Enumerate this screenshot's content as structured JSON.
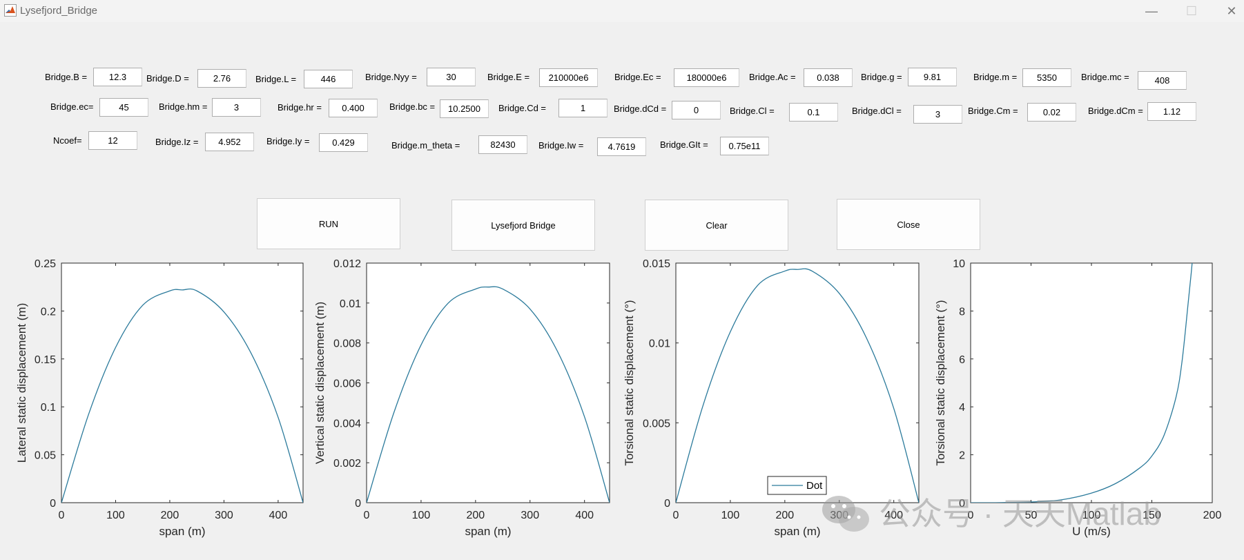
{
  "window": {
    "title": "Lysefjord_Bridge",
    "controls": [
      "—",
      "☐",
      "✕"
    ]
  },
  "params": [
    {
      "id": "B",
      "label": "Bridge.B =",
      "value": "12.3"
    },
    {
      "id": "D",
      "label": "Bridge.D =",
      "value": "2.76"
    },
    {
      "id": "L",
      "label": "Bridge.L =",
      "value": "446"
    },
    {
      "id": "Nyy",
      "label": "Bridge.Nyy =",
      "value": "30"
    },
    {
      "id": "E",
      "label": "Bridge.E =",
      "value": "210000e6"
    },
    {
      "id": "Ec",
      "label": "Bridge.Ec =",
      "value": "180000e6"
    },
    {
      "id": "Ac",
      "label": "Bridge.Ac =",
      "value": "0.038"
    },
    {
      "id": "g",
      "label": "Bridge.g =",
      "value": "9.81"
    },
    {
      "id": "m",
      "label": "Bridge.m =",
      "value": "5350"
    },
    {
      "id": "mc",
      "label": "Bridge.mc =",
      "value": "408"
    },
    {
      "id": "ec",
      "label": "Bridge.ec=",
      "value": "45"
    },
    {
      "id": "hm",
      "label": "Bridge.hm =",
      "value": "3"
    },
    {
      "id": "hr",
      "label": "Bridge.hr =",
      "value": "0.400"
    },
    {
      "id": "bc",
      "label": "Bridge.bc =",
      "value": "10.2500"
    },
    {
      "id": "Cd",
      "label": "Bridge.Cd =",
      "value": "1"
    },
    {
      "id": "dCd",
      "label": "Bridge.dCd =",
      "value": "0"
    },
    {
      "id": "Cl",
      "label": "Bridge.Cl =",
      "value": "0.1"
    },
    {
      "id": "dCl",
      "label": "Bridge.dCl =",
      "value": "3"
    },
    {
      "id": "Cm",
      "label": "Bridge.Cm =",
      "value": "0.02"
    },
    {
      "id": "dCm",
      "label": "Bridge.dCm =",
      "value": "1.12"
    },
    {
      "id": "Ncoef",
      "label": "Ncoef=",
      "value": "12"
    },
    {
      "id": "Iz",
      "label": "Bridge.Iz =",
      "value": "4.952"
    },
    {
      "id": "Iy",
      "label": "Bridge.Iy =",
      "value": "0.429"
    },
    {
      "id": "m_theta",
      "label": "Bridge.m_theta =",
      "value": "82430"
    },
    {
      "id": "Iw",
      "label": "Bridge.Iw =",
      "value": "4.7619"
    },
    {
      "id": "GIt",
      "label": "Bridge.GIt =",
      "value": "0.75e11"
    }
  ],
  "buttons": [
    {
      "id": "run",
      "label": "RUN"
    },
    {
      "id": "lysefjord",
      "label": "Lysefjord Bridge"
    },
    {
      "id": "clear",
      "label": "Clear"
    },
    {
      "id": "close",
      "label": "Close"
    }
  ],
  "line_color": "#2b7a9b",
  "chart_data": [
    {
      "type": "line",
      "xlabel": "span (m)",
      "ylabel": "Lateral static displacement (m)",
      "xlim": [
        0,
        446
      ],
      "ylim": [
        0,
        0.25
      ],
      "xticks": [
        0,
        100,
        200,
        300,
        400
      ],
      "yticks": [
        0,
        0.05,
        0.1,
        0.15,
        0.2,
        0.25
      ],
      "ytick_labels": [
        "0",
        "0.05",
        "0.1",
        "0.15",
        "0.2",
        "0.25"
      ],
      "series": [
        {
          "x": [
            0,
            50,
            100,
            150,
            200,
            223,
            250,
            300,
            350,
            400,
            446
          ],
          "y": [
            0,
            0.092,
            0.162,
            0.206,
            0.221,
            0.222,
            0.221,
            0.199,
            0.156,
            0.089,
            0
          ]
        }
      ]
    },
    {
      "type": "line",
      "xlabel": "span (m)",
      "ylabel": "Vertical static displacement (m)",
      "xlim": [
        0,
        446
      ],
      "ylim": [
        0,
        0.012
      ],
      "xticks": [
        0,
        100,
        200,
        300,
        400
      ],
      "yticks": [
        0,
        0.002,
        0.004,
        0.006,
        0.008,
        0.01,
        0.012
      ],
      "ytick_labels": [
        "0",
        "0.002",
        "0.004",
        "0.006",
        "0.008",
        "0.01",
        "0.012"
      ],
      "series": [
        {
          "x": [
            0,
            50,
            100,
            150,
            200,
            223,
            250,
            300,
            350,
            400,
            446
          ],
          "y": [
            0,
            0.0045,
            0.0079,
            0.01,
            0.0107,
            0.0108,
            0.0107,
            0.0097,
            0.0076,
            0.0043,
            0
          ]
        }
      ]
    },
    {
      "type": "line",
      "xlabel": "span (m)",
      "ylabel": "Torsional static displacement (°)",
      "xlim": [
        0,
        446
      ],
      "ylim": [
        0,
        0.015
      ],
      "xticks": [
        0,
        100,
        200,
        300,
        400
      ],
      "yticks": [
        0,
        0.005,
        0.01,
        0.015
      ],
      "ytick_labels": [
        "0",
        "0.005",
        "0.01",
        "0.015"
      ],
      "legend": {
        "entries": [
          "Dot"
        ],
        "location": "bottom"
      },
      "series": [
        {
          "name": "Dot",
          "x": [
            0,
            50,
            100,
            150,
            200,
            223,
            250,
            300,
            350,
            400,
            446
          ],
          "y": [
            0,
            0.0061,
            0.0107,
            0.0136,
            0.0145,
            0.0146,
            0.0145,
            0.0131,
            0.0103,
            0.0059,
            0
          ]
        }
      ]
    },
    {
      "type": "line",
      "xlabel": "U (m/s)",
      "ylabel": "Torsional static displacement (°)",
      "xlim": [
        0,
        200
      ],
      "ylim": [
        0,
        10
      ],
      "xticks": [
        0,
        50,
        100,
        150,
        200
      ],
      "yticks": [
        0,
        2,
        4,
        6,
        8,
        10
      ],
      "ytick_labels": [
        "0",
        "2",
        "4",
        "6",
        "8",
        "10"
      ],
      "series": [
        {
          "x": [
            0,
            25,
            50,
            75,
            100,
            120,
            140,
            150,
            160,
            170,
            175,
            180,
            183,
            185
          ],
          "y": [
            0,
            0.003,
            0.03,
            0.12,
            0.4,
            0.8,
            1.45,
            1.95,
            2.8,
            4.4,
            5.9,
            8.3,
            9.8,
            11
          ]
        }
      ]
    }
  ],
  "watermark": "公众号 · 天天Matlab"
}
